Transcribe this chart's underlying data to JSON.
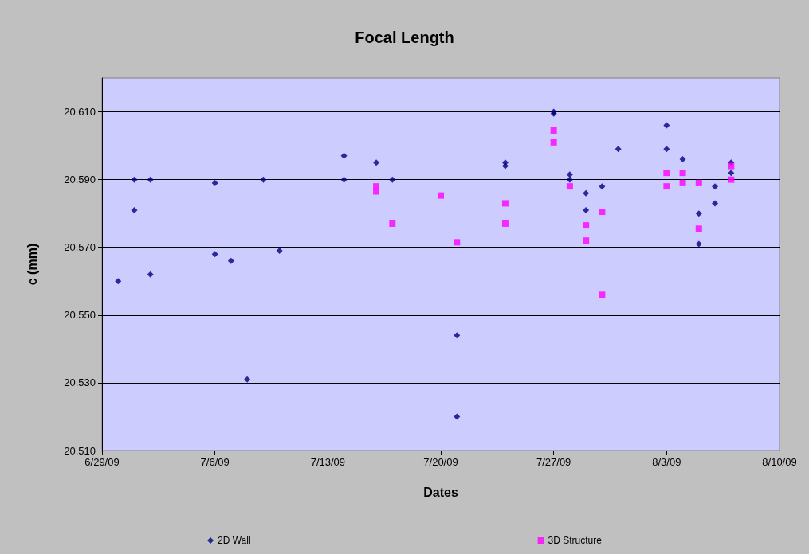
{
  "chart_data": {
    "type": "scatter",
    "title": "Focal Length",
    "xlabel": "Dates",
    "ylabel": "c (mm)",
    "xlim": [
      "--06-29",
      "--08-10"
    ],
    "xticks": [
      {
        "value": "--06-29",
        "label": "6/29/09"
      },
      {
        "value": "--07-06",
        "label": "7/6/09"
      },
      {
        "value": "--07-13",
        "label": "7/13/09"
      },
      {
        "value": "--07-20",
        "label": "7/20/09"
      },
      {
        "value": "--07-27",
        "label": "7/27/09"
      },
      {
        "value": "--08-03",
        "label": "8/3/09"
      },
      {
        "value": "--08-10",
        "label": "8/10/09"
      }
    ],
    "ylim": [
      20.51,
      20.62
    ],
    "yticks": [
      {
        "value": 20.51,
        "label": "20.510"
      },
      {
        "value": 20.53,
        "label": "20.530"
      },
      {
        "value": 20.55,
        "label": "20.550"
      },
      {
        "value": 20.57,
        "label": "20.570"
      },
      {
        "value": 20.59,
        "label": "20.590"
      },
      {
        "value": 20.61,
        "label": "20.610"
      }
    ],
    "grid": "y",
    "legend": "bottom",
    "series": [
      {
        "name": "2D Wall",
        "color": "#000080",
        "marker": "diamond",
        "x": [
          "--06-30",
          "--07-01",
          "--07-01",
          "--07-02",
          "--07-02",
          "--07-06",
          "--07-06",
          "--07-07",
          "--07-08",
          "--07-09",
          "--07-10",
          "--07-14",
          "--07-14",
          "--07-16",
          "--07-17",
          "--07-21",
          "--07-21",
          "--07-24",
          "--07-24",
          "--07-27",
          "--07-27",
          "--07-28",
          "--07-28",
          "--07-29",
          "--07-29",
          "--07-30",
          "--07-31",
          "--08-03",
          "--08-03",
          "--08-04",
          "--08-05",
          "--08-05",
          "--08-06",
          "--08-06",
          "--08-07",
          "--08-07"
        ],
        "values": [
          20.56,
          20.59,
          20.581,
          20.59,
          20.562,
          20.589,
          20.568,
          20.566,
          20.531,
          20.59,
          20.569,
          20.597,
          20.59,
          20.595,
          20.59,
          20.544,
          20.52,
          20.595,
          20.594,
          20.61,
          20.6095,
          20.5915,
          20.59,
          20.586,
          20.581,
          20.588,
          20.599,
          20.606,
          20.599,
          20.596,
          20.58,
          20.571,
          20.588,
          20.583,
          20.595,
          20.592
        ]
      },
      {
        "name": "3D Structure",
        "color": "#ff00ff",
        "marker": "square",
        "x": [
          "--07-16",
          "--07-16",
          "--07-17",
          "--07-20",
          "--07-21",
          "--07-24",
          "--07-24",
          "--07-27",
          "--07-27",
          "--07-28",
          "--07-29",
          "--07-29",
          "--07-30",
          "--07-30",
          "--08-03",
          "--08-03",
          "--08-04",
          "--08-04",
          "--08-05",
          "--08-05",
          "--08-07",
          "--08-07"
        ],
        "values": [
          20.588,
          20.5865,
          20.577,
          20.5853,
          20.5715,
          20.583,
          20.577,
          20.6045,
          20.601,
          20.588,
          20.5765,
          20.572,
          20.5805,
          20.556,
          20.592,
          20.588,
          20.592,
          20.589,
          20.589,
          20.5755,
          20.594,
          20.59
        ]
      }
    ]
  }
}
